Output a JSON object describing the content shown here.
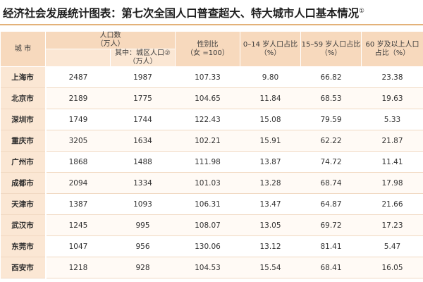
{
  "title": "经济社会发展统计图表：第七次全国人口普查超大、特大城市人口基本情况",
  "title_note": "①",
  "headers": {
    "city": "城 市",
    "population": "人口数\n（万人）",
    "urban_population": "其中：城区人口②\n（万人）",
    "sex_ratio": "性别比\n（女 =100）",
    "age_0_14": "0–14 岁人口占比\n（%）",
    "age_15_59": "15–59 岁人口占比\n（%）",
    "age_60_plus": "60 岁及以上人口\n占比（%）"
  },
  "rows": [
    {
      "city": "上海市",
      "population": "2487",
      "urban": "1987",
      "sex_ratio": "107.33",
      "a0_14": "9.80",
      "a15_59": "66.82",
      "a60": "23.38"
    },
    {
      "city": "北京市",
      "population": "2189",
      "urban": "1775",
      "sex_ratio": "104.65",
      "a0_14": "11.84",
      "a15_59": "68.53",
      "a60": "19.63"
    },
    {
      "city": "深圳市",
      "population": "1749",
      "urban": "1744",
      "sex_ratio": "122.43",
      "a0_14": "15.08",
      "a15_59": "79.59",
      "a60": "5.33"
    },
    {
      "city": "重庆市",
      "population": "3205",
      "urban": "1634",
      "sex_ratio": "102.21",
      "a0_14": "15.91",
      "a15_59": "62.22",
      "a60": "21.87"
    },
    {
      "city": "广州市",
      "population": "1868",
      "urban": "1488",
      "sex_ratio": "111.98",
      "a0_14": "13.87",
      "a15_59": "74.72",
      "a60": "11.41"
    },
    {
      "city": "成都市",
      "population": "2094",
      "urban": "1334",
      "sex_ratio": "101.03",
      "a0_14": "13.28",
      "a15_59": "68.74",
      "a60": "17.98"
    },
    {
      "city": "天津市",
      "population": "1387",
      "urban": "1093",
      "sex_ratio": "106.31",
      "a0_14": "13.47",
      "a15_59": "64.87",
      "a60": "21.66"
    },
    {
      "city": "武汉市",
      "population": "1245",
      "urban": "995",
      "sex_ratio": "108.07",
      "a0_14": "13.05",
      "a15_59": "69.72",
      "a60": "17.23"
    },
    {
      "city": "东莞市",
      "population": "1047",
      "urban": "956",
      "sex_ratio": "130.06",
      "a0_14": "13.12",
      "a15_59": "81.41",
      "a60": "5.47"
    },
    {
      "city": "西安市",
      "population": "1218",
      "urban": "928",
      "sex_ratio": "104.53",
      "a0_14": "15.54",
      "a15_59": "68.41",
      "a60": "16.05"
    }
  ]
}
